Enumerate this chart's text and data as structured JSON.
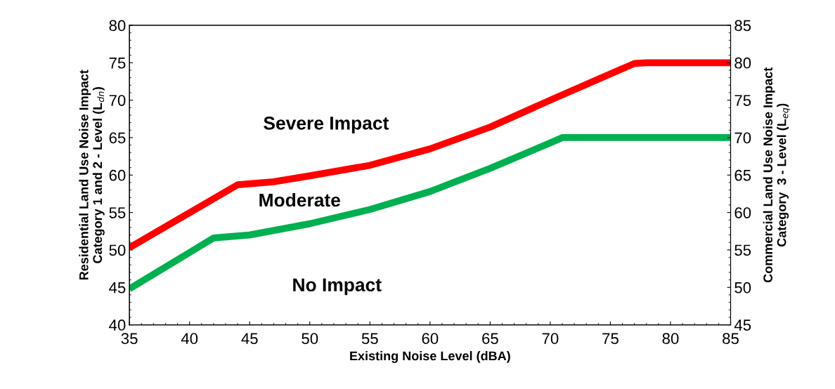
{
  "chart_data": {
    "type": "line",
    "xlabel": "Existing Noise Level (dBA)",
    "ylabel": "Residential Land Use Noise Impact\nCategory 1 and 2 - Level (L$_{dn}$)",
    "y2label": "Commercial Land Use Noise Impact\nCategory  3 - Level (L$_{eq}$)",
    "xlim": [
      35,
      85
    ],
    "xticks": [
      35,
      40,
      45,
      50,
      55,
      60,
      65,
      70,
      75,
      80,
      85
    ],
    "ylim": [
      40,
      80
    ],
    "yticks": [
      40,
      45,
      50,
      55,
      60,
      65,
      70,
      75,
      80
    ],
    "y2lim": [
      45,
      85
    ],
    "y2ticks": [
      45,
      50,
      55,
      60,
      65,
      70,
      75,
      80,
      85
    ],
    "grid": false,
    "legend": false,
    "marker": "none",
    "line_style": "solid",
    "series": [
      {
        "color": "#ff0000",
        "x": [
          35,
          44,
          47,
          50,
          55,
          60,
          65,
          70,
          75,
          77,
          78,
          85
        ],
        "values": [
          50.3,
          58.7,
          59.1,
          59.9,
          61.3,
          63.5,
          66.4,
          70,
          73.5,
          74.9,
          75,
          75
        ]
      },
      {
        "color": "#00b050",
        "x": [
          35,
          42,
          45,
          50,
          55,
          60,
          65,
          70,
          71,
          85
        ],
        "values": [
          44.8,
          51.6,
          52.0,
          53.5,
          55.4,
          57.8,
          60.9,
          64.3,
          65,
          65
        ]
      }
    ],
    "annotations": [
      "Severe Impact",
      "Moderate",
      "No Impact"
    ]
  }
}
